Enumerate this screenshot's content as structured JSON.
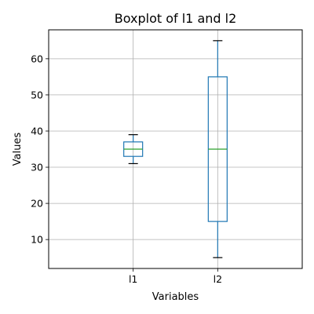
{
  "chart_data": {
    "type": "box",
    "title": "Boxplot of l1 and l2",
    "xlabel": "Variables",
    "ylabel": "Values",
    "categories": [
      "l1",
      "l2"
    ],
    "boxes": [
      {
        "name": "l1",
        "whisker_low": 31,
        "q1": 33,
        "median": 35,
        "q3": 37,
        "whisker_high": 39
      },
      {
        "name": "l2",
        "whisker_low": 5,
        "q1": 15,
        "median": 35,
        "q3": 55,
        "whisker_high": 65
      }
    ],
    "yticks": [
      10,
      20,
      30,
      40,
      50,
      60
    ],
    "ylim": [
      2,
      68
    ],
    "grid": true,
    "colors": {
      "box": "#1f77b4",
      "median": "#2ca02c",
      "whisker_cap": "#000000",
      "grid": "#b0b0b0"
    }
  }
}
